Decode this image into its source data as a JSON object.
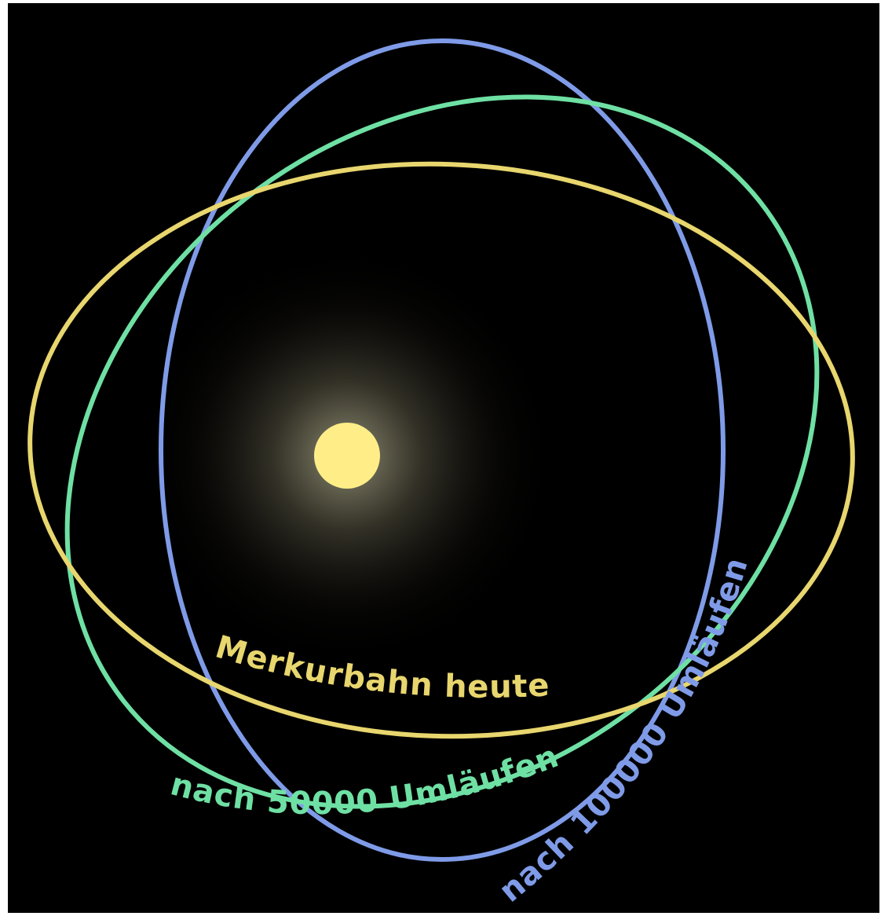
{
  "diagram": {
    "colors": {
      "background": "#000000",
      "sun": "#ffee88",
      "sun_glow": "#fffbd0",
      "orbit_today": "#e8d66e",
      "orbit_50000": "#6fe0a4",
      "orbit_100000": "#7f9be8"
    },
    "orbits": [
      {
        "id": "today",
        "label": "Merkurbahn heute"
      },
      {
        "id": "after_50000",
        "label": "nach 50000 Umläufen"
      },
      {
        "id": "after_100000",
        "label": "nach 100000 Umläufen"
      }
    ]
  }
}
